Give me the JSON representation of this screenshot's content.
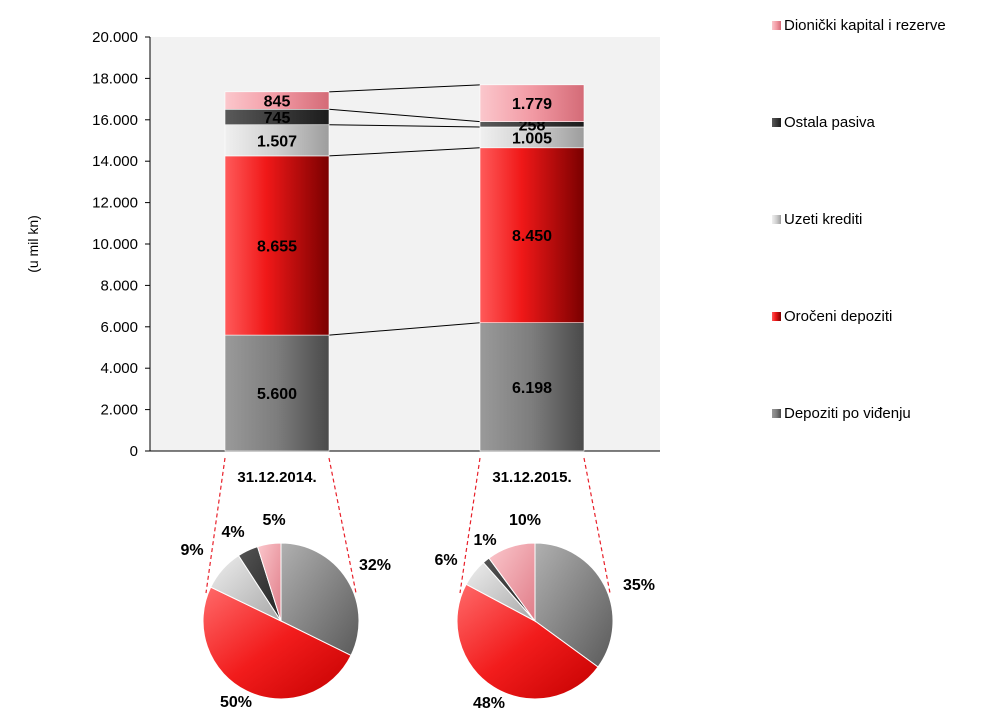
{
  "chart_data": {
    "type": "bar",
    "stacked": true,
    "ylabel": "(u mil kn)",
    "ylim": [
      0,
      20000
    ],
    "yticks": [
      "0",
      "2.000",
      "4.000",
      "6.000",
      "8.000",
      "10.000",
      "12.000",
      "14.000",
      "16.000",
      "18.000",
      "20.000"
    ],
    "categories": [
      "31.12.2014.",
      "31.12.2015."
    ],
    "grid": false,
    "legend_position": "right",
    "series": [
      {
        "name": "Depoziti po viđenju",
        "values": [
          5600,
          6198
        ],
        "labels": [
          "5.600",
          "6.198"
        ],
        "color": "#8c8c8c"
      },
      {
        "name": "Oročeni depoziti",
        "values": [
          8655,
          8450
        ],
        "labels": [
          "8.655",
          "8.450"
        ],
        "color": "#e8202a"
      },
      {
        "name": "Uzeti krediti",
        "values": [
          1507,
          1005
        ],
        "labels": [
          "1.507",
          "1.005"
        ],
        "color": "#d3d3d3"
      },
      {
        "name": "Ostala pasiva",
        "values": [
          745,
          258
        ],
        "labels": [
          "745",
          "258"
        ],
        "color": "#404040"
      },
      {
        "name": "Dionički kapital i rezerve",
        "values": [
          845,
          1779
        ],
        "labels": [
          "845",
          "1.779"
        ],
        "color": "#f2a2ab"
      }
    ],
    "legend_order": [
      "Dionički kapital i rezerve",
      "Ostala pasiva",
      "Uzeti krediti",
      "Oročeni depoziti",
      "Depoziti po viđenju"
    ],
    "pies": [
      {
        "category": "31.12.2014.",
        "percent_labels": [
          "32%",
          "50%",
          "9%",
          "4%",
          "5%"
        ]
      },
      {
        "category": "31.12.2015.",
        "percent_labels": [
          "35%",
          "48%",
          "6%",
          "1%",
          "10%"
        ]
      }
    ]
  }
}
